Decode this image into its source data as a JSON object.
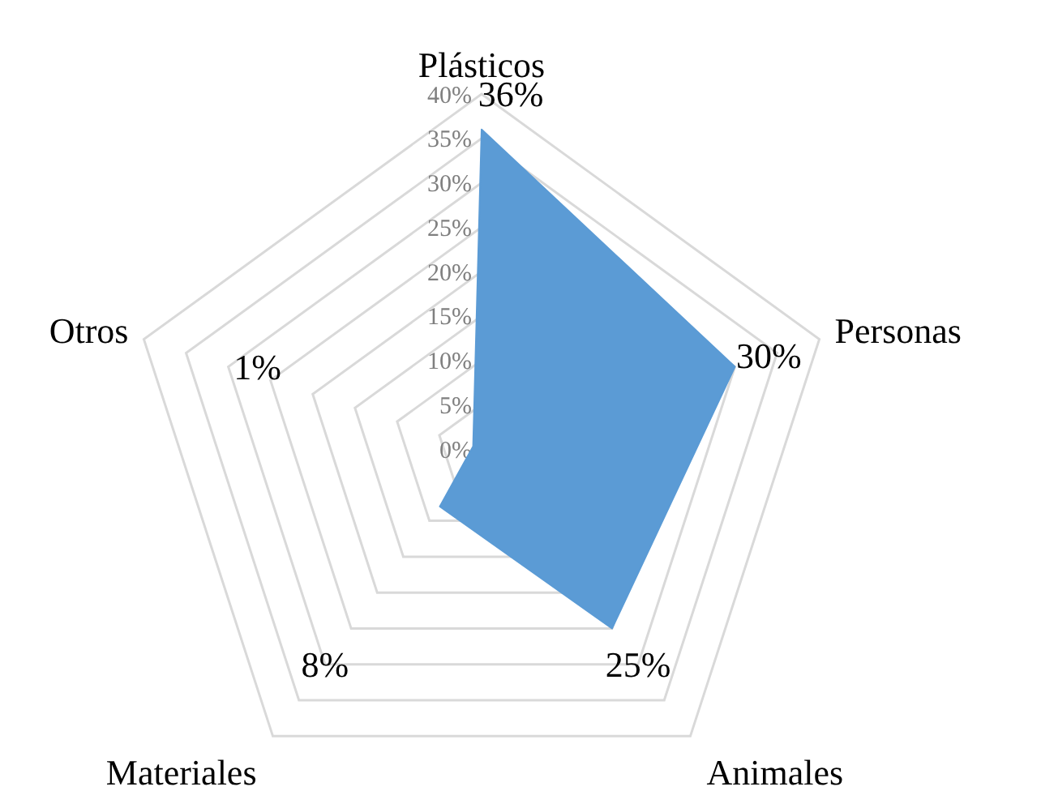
{
  "chart_data": {
    "type": "radar",
    "categories": [
      "Plásticos",
      "Personas",
      "Animales",
      "Materiales",
      "Otros"
    ],
    "series": [
      {
        "color": "#5b9bd5",
        "values": [
          36,
          30,
          25,
          8,
          1
        ]
      }
    ],
    "value_labels": [
      "36%",
      "30%",
      "25%",
      "8%",
      "1%"
    ],
    "ylim": [
      0,
      40
    ],
    "yticks": [
      {
        "value": 0,
        "label": "0%"
      },
      {
        "value": 5,
        "label": "5%"
      },
      {
        "value": 10,
        "label": "10%"
      },
      {
        "value": 15,
        "label": "15%"
      },
      {
        "value": 20,
        "label": "20%"
      },
      {
        "value": 25,
        "label": "25%"
      },
      {
        "value": 30,
        "label": "30%"
      },
      {
        "value": 35,
        "label": "35%"
      },
      {
        "value": 40,
        "label": "40%"
      }
    ],
    "grid": true
  }
}
